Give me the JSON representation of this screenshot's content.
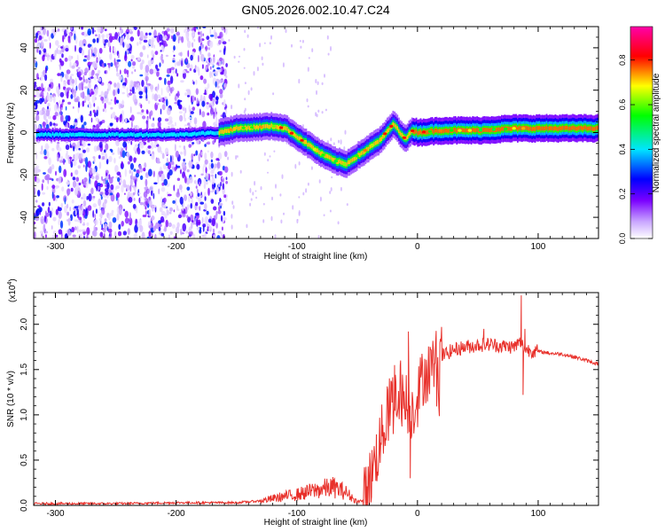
{
  "chart_data": [
    {
      "type": "heatmap",
      "title": "GN05.2026.002.10.47.C24",
      "xlabel": "Height of straight line (km)",
      "ylabel": "Frequency (Hz)",
      "xlim": [
        -318,
        150
      ],
      "ylim": [
        -50,
        50
      ],
      "xticks": [
        -300,
        -200,
        -100,
        0,
        100
      ],
      "yticks": [
        -40,
        -20,
        0,
        20,
        40
      ],
      "colorbar": {
        "label": "Normalized spectral amplitude",
        "range": [
          0,
          0.95
        ],
        "ticks": [
          0.0,
          0.2,
          0.4,
          0.6,
          0.8
        ],
        "colors": [
          "#ffffff",
          "#7a00ff",
          "#0000ff",
          "#00e5ff",
          "#00ff00",
          "#ffff00",
          "#ff0000",
          "#ff00aa"
        ]
      },
      "ridge": {
        "x": [
          -310,
          -250,
          -200,
          -165,
          -150,
          -120,
          -110,
          -100,
          -90,
          -80,
          -70,
          -60,
          -50,
          -40,
          -30,
          -25,
          -20,
          -15,
          -10,
          -5,
          0,
          20,
          50,
          80,
          100,
          150
        ],
        "freq": [
          -1,
          -1,
          -1,
          0,
          2,
          3,
          2,
          -2,
          -6,
          -10,
          -13,
          -15,
          -11,
          -7,
          -3,
          1,
          4,
          0,
          -3,
          1,
          0,
          1,
          1,
          2,
          2,
          2
        ]
      }
    },
    {
      "type": "line",
      "xlabel": "Height of straight line (km)",
      "ylabel": "SNR (10 * v/v)",
      "y_multiplier": "(x10",
      "y_multiplier_exp": "4",
      "xlim": [
        -318,
        150
      ],
      "ylim": [
        0,
        2.35
      ],
      "xticks": [
        -300,
        -200,
        -100,
        0,
        100
      ],
      "yticks": [
        0.0,
        0.5,
        1.0,
        1.5,
        2.0
      ],
      "series": [
        {
          "name": "SNR",
          "color": "#e8302a",
          "x": [
            -318,
            -250,
            -200,
            -150,
            -130,
            -110,
            -100,
            -90,
            -80,
            -70,
            -60,
            -50,
            -45,
            -40,
            -35,
            -30,
            -25,
            -20,
            -15,
            -10,
            -5,
            0,
            5,
            10,
            15,
            20,
            30,
            40,
            50,
            60,
            70,
            80,
            85,
            90,
            100,
            110,
            120,
            130,
            140,
            150
          ],
          "y": [
            0.02,
            0.02,
            0.03,
            0.03,
            0.05,
            0.1,
            0.12,
            0.15,
            0.18,
            0.2,
            0.15,
            0.04,
            0.05,
            0.25,
            0.5,
            0.75,
            1.0,
            1.2,
            1.25,
            1.15,
            1.05,
            1.2,
            1.45,
            1.5,
            1.6,
            1.65,
            1.72,
            1.75,
            1.77,
            1.78,
            1.76,
            1.75,
            1.8,
            1.72,
            1.7,
            1.68,
            1.67,
            1.64,
            1.6,
            1.56
          ]
        }
      ]
    }
  ]
}
